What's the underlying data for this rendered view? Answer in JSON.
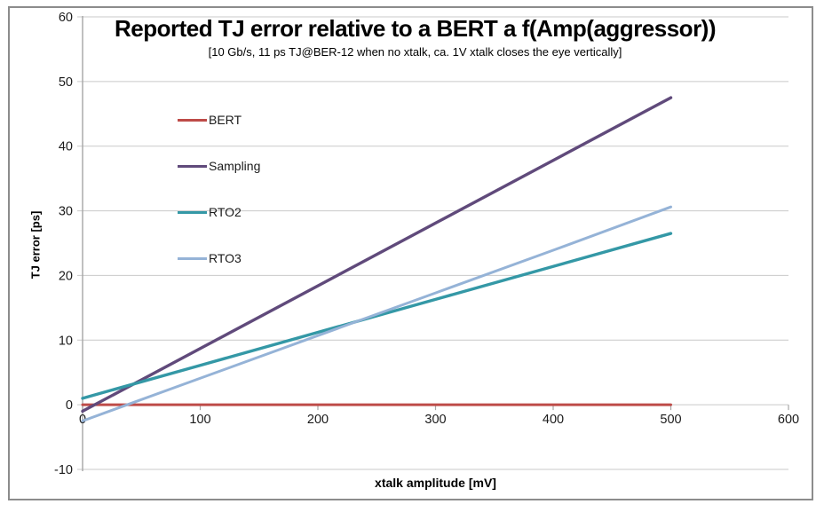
{
  "figure": {
    "kind": "excel-style line chart",
    "background": "#ffffff",
    "border_color": "#8c8c8c"
  },
  "chart_data": {
    "type": "line",
    "title": "Reported TJ error relative to a BERT a f(Amp(aggressor))",
    "subtitle": "[10 Gb/s, 11 ps TJ@BER-12 when no xtalk, ca. 1V xtalk closes the eye vertically]",
    "xlabel": "xtalk amplitude [mV]",
    "ylabel": "TJ error [ps]",
    "xlim": [
      0,
      600
    ],
    "ylim": [
      -10,
      60
    ],
    "xticks": [
      0,
      100,
      200,
      300,
      400,
      500,
      600
    ],
    "yticks": [
      -10,
      0,
      10,
      20,
      30,
      40,
      50,
      60
    ],
    "grid": true,
    "legend_position": "upper-left-inside",
    "x": [
      0,
      100,
      200,
      300,
      400,
      500
    ],
    "series": [
      {
        "name": "BERT",
        "color": "#be4b48",
        "width": 3,
        "values": [
          0,
          0,
          0,
          0,
          0,
          0
        ]
      },
      {
        "name": "Sampling",
        "color": "#604a7b",
        "width": 3.4,
        "values": [
          -1,
          8.7,
          18.4,
          28.1,
          37.8,
          47.5
        ]
      },
      {
        "name": "RTO2",
        "color": "#3498a6",
        "width": 3.4,
        "values": [
          1,
          6.1,
          11.2,
          16.3,
          21.4,
          26.5
        ]
      },
      {
        "name": "RTO3",
        "color": "#95b3d7",
        "width": 3,
        "values": [
          -2.5,
          4.1,
          10.7,
          17.3,
          23.9,
          30.6
        ]
      }
    ],
    "grid_color": "#c9c9c9",
    "axis_color": "#a6a6a6",
    "tick_label_color": "#1a1a1a"
  }
}
